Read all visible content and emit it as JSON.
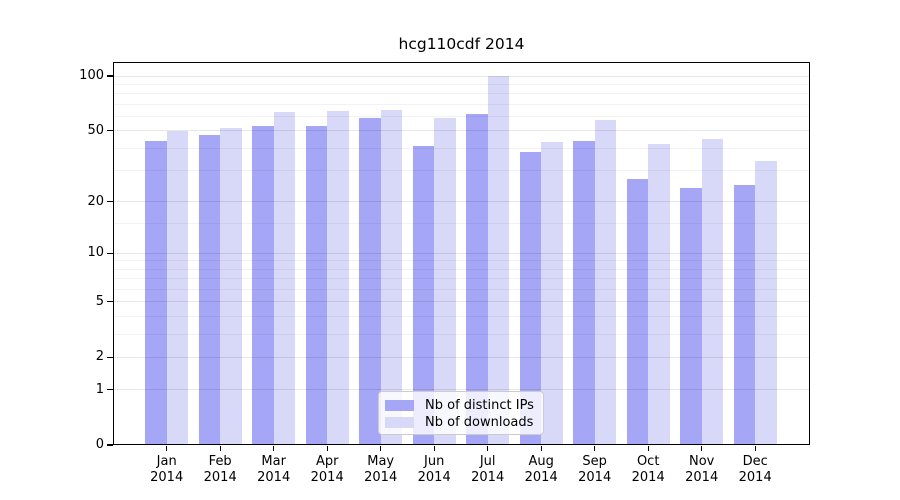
{
  "title": "hcg110cdf 2014",
  "chart_data": {
    "type": "bar",
    "title": "hcg110cdf 2014",
    "categories": [
      "Jan 2014",
      "Feb 2014",
      "Mar 2014",
      "Apr 2014",
      "May 2014",
      "Jun 2014",
      "Jul 2014",
      "Aug 2014",
      "Sep 2014",
      "Oct 2014",
      "Nov 2014",
      "Dec 2014"
    ],
    "series": [
      {
        "name": "Nb of distinct IPs",
        "color": "#a6a6f6",
        "values": [
          44,
          47,
          53,
          53,
          59,
          41,
          62,
          38,
          44,
          27,
          24,
          25
        ]
      },
      {
        "name": "Nb of downloads",
        "color": "#d8d8f8",
        "values": [
          50,
          52,
          63,
          64,
          65,
          59,
          100,
          43,
          57,
          42,
          45,
          34
        ]
      }
    ],
    "xlabel": "",
    "ylabel": "",
    "ylim": [
      0,
      100
    ],
    "yscale": "log(1+y)",
    "yticks": [
      100,
      50,
      20,
      10,
      5,
      2,
      1,
      0
    ],
    "minor_gridlines": [
      3,
      4,
      6,
      7,
      8,
      9,
      15,
      30,
      40,
      60,
      70,
      80,
      90
    ],
    "grid": true,
    "legend_position": "bottom-center"
  },
  "legend": {
    "items": [
      {
        "label": "Nb of distinct IPs",
        "color": "#a6a6f6"
      },
      {
        "label": "Nb of downloads",
        "color": "#d8d8f8"
      }
    ]
  },
  "colors": {
    "background": "#ffffff",
    "bar_ips": "#a6a6f6",
    "bar_downloads": "#d8d8f8",
    "axis": "#000000"
  }
}
